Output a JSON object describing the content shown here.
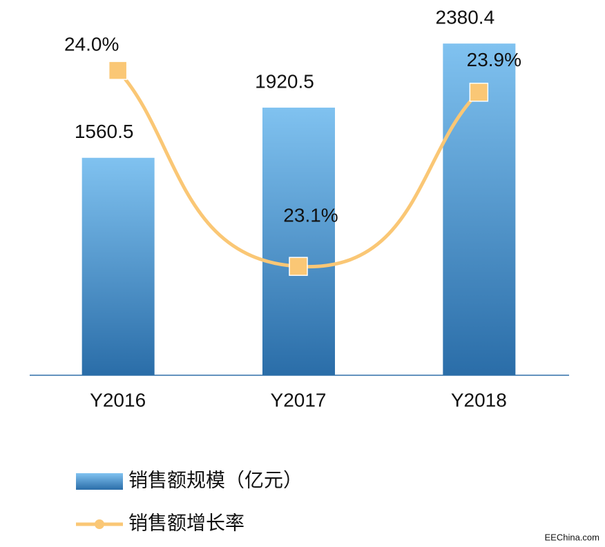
{
  "chart_data": {
    "type": "combo",
    "categories": [
      "Y2016",
      "Y2017",
      "Y2018"
    ],
    "series": [
      {
        "name": "销售额规模（亿元）",
        "type": "bar",
        "gradient": [
          "#80c2f0",
          "#2a6da8"
        ],
        "values": [
          1560.5,
          1920.5,
          2380.4
        ]
      },
      {
        "name": "销售额增长率",
        "type": "line",
        "axis": "y2",
        "color": "#fac775",
        "values": [
          24.0,
          23.1,
          23.9
        ],
        "value_labels": [
          "24.0%",
          "23.1%",
          "23.9%"
        ]
      }
    ],
    "ylim": [
      0,
      2500
    ],
    "y2lim": [
      22.6,
      24.2
    ],
    "axis_color": "#2e6fa8",
    "source": "EEChina.com"
  }
}
